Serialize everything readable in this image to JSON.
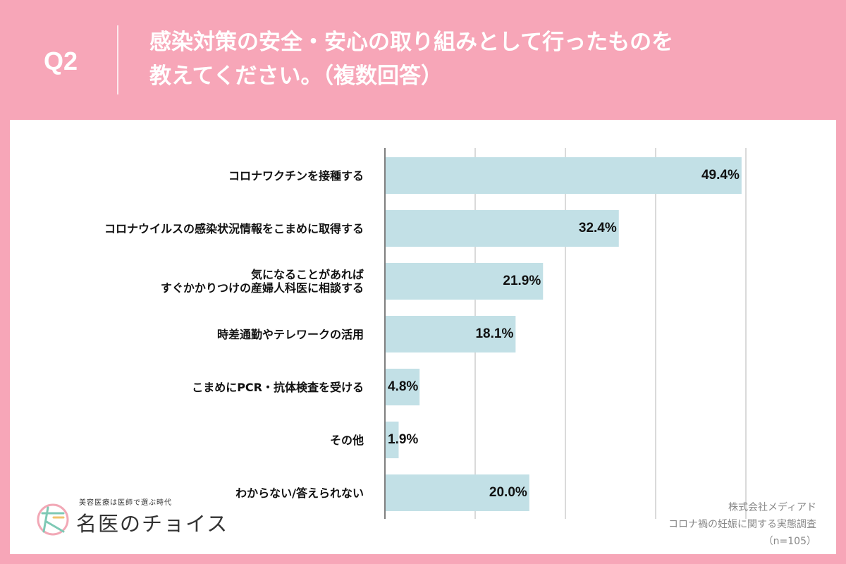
{
  "header": {
    "q_number": "Q2",
    "title_line1": "感染対策の安全・安心の取り組みとして行ったものを",
    "title_line2": "教えてください。（複数回答）"
  },
  "chart_data": {
    "type": "bar",
    "orientation": "horizontal",
    "categories": [
      "コロナワクチンを接種する",
      "コロナウイルスの感染状況情報をこまめに取得する",
      "気になることがあれば\nすぐかかりつけの産婦人科医に相談する",
      "時差通勤やテレワークの活用",
      "こまめにPCR・抗体検査を受ける",
      "その他",
      "わからない/答えられない"
    ],
    "values": [
      49.4,
      32.4,
      21.9,
      18.1,
      4.8,
      1.9,
      20.0
    ],
    "value_labels": [
      "49.4%",
      "32.4%",
      "21.9%",
      "18.1%",
      "4.8%",
      "1.9%",
      "20.0%"
    ],
    "xlim": [
      0,
      50
    ],
    "gridlines": [
      0,
      12.5,
      25,
      37.5,
      50
    ],
    "bar_color": "#c2e0e6",
    "grid": true
  },
  "logo": {
    "tagline": "美容医療は医師で選ぶ時代",
    "name": "名医のチョイス"
  },
  "source": {
    "line1": "株式会社メディアド",
    "line2": "コロナ禍の妊娠に関する実態調査",
    "line3": "（n=105）"
  },
  "colors": {
    "background": "#f7a6b8",
    "card": "#ffffff",
    "bar": "#c2e0e6",
    "gridline": "#b5b5b5"
  }
}
